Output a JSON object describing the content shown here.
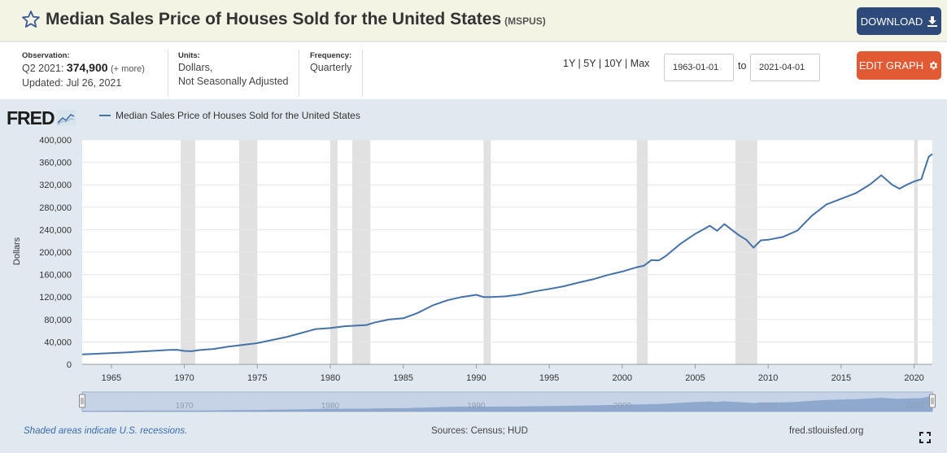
{
  "header": {
    "title": "Median Sales Price of Houses Sold for the United States",
    "series_id": "(MSPUS)",
    "download_label": "DOWNLOAD",
    "edit_label": "EDIT GRAPH"
  },
  "meta": {
    "observation_label": "Observation:",
    "observation_period": "Q2 2021:",
    "observation_value": "374,900",
    "observation_more": "(+ more)",
    "updated": "Updated: Jul 26, 2021",
    "units_label": "Units:",
    "units_line1": "Dollars,",
    "units_line2": "Not Seasonally Adjusted",
    "frequency_label": "Frequency:",
    "frequency_value": "Quarterly"
  },
  "range_links": [
    "1Y",
    "5Y",
    "10Y",
    "Max"
  ],
  "date_range": {
    "start": "1963-01-01",
    "to_label": "to",
    "end": "2021-04-01"
  },
  "logo_text": "FRED",
  "footer": {
    "note": "Shaded areas indicate U.S. recessions.",
    "sources": "Sources: Census; HUD",
    "site": "fred.stlouisfed.org"
  },
  "colors": {
    "line": "#4572a7",
    "recession": "#e1e1e1",
    "download": "#2d4a7a",
    "edit": "#e25a34"
  },
  "chart_data": {
    "type": "line",
    "title": "Median Sales Price of Houses Sold for the United States",
    "xlabel": "",
    "ylabel": "Dollars",
    "xlim": [
      1963.0,
      2021.25
    ],
    "ylim": [
      0,
      400000
    ],
    "y_ticks": [
      0,
      40000,
      80000,
      120000,
      160000,
      200000,
      240000,
      280000,
      320000,
      360000,
      400000
    ],
    "y_tick_labels": [
      "0",
      "40,000",
      "80,000",
      "120,000",
      "160,000",
      "200,000",
      "240,000",
      "280,000",
      "320,000",
      "360,000",
      "400,000"
    ],
    "x_ticks": [
      1965,
      1970,
      1975,
      1980,
      1985,
      1990,
      1995,
      2000,
      2005,
      2010,
      2015,
      2020
    ],
    "x_tick_labels": [
      "1965",
      "1970",
      "1975",
      "1980",
      "1985",
      "1990",
      "1995",
      "2000",
      "2005",
      "2010",
      "2015",
      "2020"
    ],
    "grid": true,
    "navigator_labels": [
      "1970",
      "1980",
      "1990",
      "2000",
      "2010",
      "2020"
    ],
    "recessions": [
      [
        1969.75,
        1970.75
      ],
      [
        1973.75,
        1975.0
      ],
      [
        1980.0,
        1980.5
      ],
      [
        1981.5,
        1982.75
      ],
      [
        1990.5,
        1991.0
      ],
      [
        2001.0,
        2001.75
      ],
      [
        2007.75,
        2009.25
      ],
      [
        2020.0,
        2020.25
      ]
    ],
    "series": [
      {
        "name": "Median Sales Price of Houses Sold for the United States",
        "x": [
          1963.0,
          1964.0,
          1965.0,
          1966.0,
          1967.0,
          1968.0,
          1969.0,
          1969.5,
          1970.0,
          1970.5,
          1971.0,
          1972.0,
          1973.0,
          1974.0,
          1975.0,
          1976.0,
          1977.0,
          1978.0,
          1979.0,
          1980.0,
          1981.0,
          1982.0,
          1982.5,
          1983.0,
          1984.0,
          1985.0,
          1986.0,
          1987.0,
          1988.0,
          1989.0,
          1990.0,
          1990.5,
          1991.0,
          1992.0,
          1993.0,
          1994.0,
          1995.0,
          1996.0,
          1997.0,
          1998.0,
          1999.0,
          2000.0,
          2001.0,
          2001.5,
          2002.0,
          2002.5,
          2003.0,
          2004.0,
          2005.0,
          2006.0,
          2006.5,
          2007.0,
          2007.5,
          2008.0,
          2008.5,
          2009.0,
          2009.5,
          2010.0,
          2011.0,
          2012.0,
          2013.0,
          2014.0,
          2015.0,
          2016.0,
          2017.0,
          2017.75,
          2018.5,
          2019.0,
          2019.5,
          2020.0,
          2020.5,
          2021.0,
          2021.25
        ],
        "values": [
          17800,
          18900,
          20200,
          21200,
          22700,
          24200,
          25600,
          26000,
          23900,
          23400,
          25300,
          27400,
          31400,
          34600,
          37800,
          43400,
          48700,
          55800,
          62900,
          64600,
          67900,
          69400,
          70200,
          74400,
          79900,
          82200,
          91700,
          105000,
          114000,
          120000,
          123900,
          120000,
          120000,
          121200,
          124500,
          130000,
          134400,
          139200,
          145600,
          151600,
          159200,
          165400,
          173100,
          176000,
          186000,
          185000,
          193300,
          215000,
          232500,
          247000,
          238000,
          250000,
          240000,
          230000,
          222000,
          208000,
          221000,
          222000,
          226900,
          238400,
          265000,
          285000,
          295000,
          305000,
          321000,
          337000,
          320000,
          313000,
          320000,
          326000,
          330000,
          369800,
          374900
        ]
      }
    ]
  }
}
